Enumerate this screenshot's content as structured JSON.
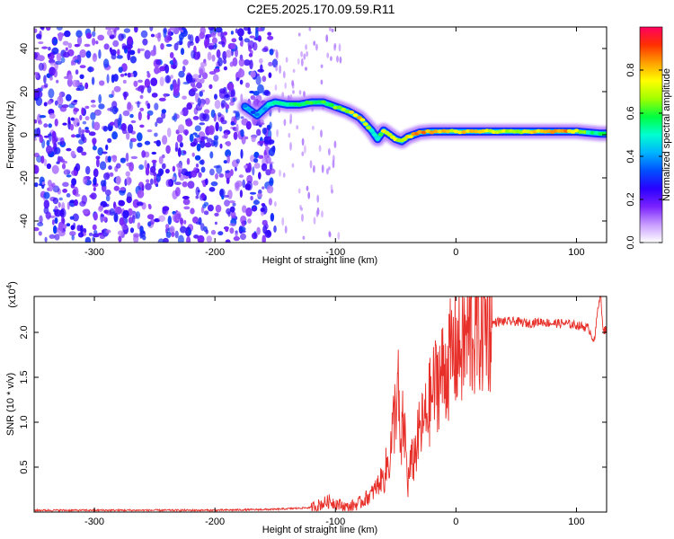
{
  "title": "C2E5.2025.170.09.59.R11",
  "chart_data": [
    {
      "type": "heatmap",
      "xlabel": "Height of straight line (km)",
      "ylabel": "Frequency (Hz)",
      "xlim": [
        -350,
        125
      ],
      "ylim": [
        -50,
        50
      ],
      "xticks": [
        -300,
        -200,
        -100,
        0,
        100
      ],
      "yticks": [
        -40,
        -20,
        0,
        20,
        40
      ],
      "colorbar": {
        "label": "Normalized spectral amplitude",
        "range": [
          0,
          1
        ],
        "ticks": [
          "0.0",
          "0.2",
          "0.4",
          "0.6",
          "0.8"
        ],
        "tick_values": [
          0.0,
          0.2,
          0.4,
          0.6,
          0.8
        ],
        "colors": [
          "#ffffff",
          "#c89bff",
          "#7a22ff",
          "#2a00ff",
          "#0050ff",
          "#00b4ff",
          "#00ffd0",
          "#00ff40",
          "#a0ff00",
          "#ffff00",
          "#ffa000",
          "#ff3000",
          "#ff0060"
        ]
      },
      "noise_region_x": [
        -350,
        -150
      ],
      "ridge": {
        "x": [
          -175,
          -165,
          -155,
          -150,
          -140,
          -130,
          -120,
          -110,
          -100,
          -90,
          -80,
          -75,
          -70,
          -65,
          -60,
          -55,
          -50,
          -45,
          -40,
          -35,
          -30,
          -20,
          -10,
          0,
          10,
          20,
          40,
          60,
          80,
          100,
          110,
          120,
          125
        ],
        "frequency": [
          13,
          9,
          14,
          15,
          14,
          14,
          15,
          15,
          13,
          11,
          8,
          5,
          2,
          -2,
          2,
          0,
          -2,
          -3,
          -1,
          0,
          1,
          1.5,
          1.5,
          1.5,
          1.5,
          1.5,
          1.5,
          1.5,
          1.5,
          1.5,
          1.0,
          0.5,
          0.5
        ],
        "amplitude": [
          0.35,
          0.35,
          0.45,
          0.5,
          0.55,
          0.6,
          0.62,
          0.6,
          0.62,
          0.7,
          0.78,
          0.72,
          0.55,
          0.45,
          0.72,
          0.75,
          0.7,
          0.72,
          0.75,
          0.78,
          0.85,
          0.8,
          0.78,
          0.7,
          0.8,
          0.75,
          0.7,
          0.72,
          0.85,
          0.8,
          0.5,
          0.55,
          0.5
        ]
      }
    },
    {
      "type": "line",
      "xlabel": "Height of straight line (km)",
      "ylabel": "SNR (10 * v/v)",
      "y_multiplier": "(x10",
      "y_multiplier_exp": "4",
      "y_multiplier_close": ")",
      "xlim": [
        -350,
        125
      ],
      "ylim": [
        0,
        2.4
      ],
      "xticks": [
        -300,
        -200,
        -100,
        0,
        100
      ],
      "yticks": [
        0.5,
        1.0,
        1.5,
        2.0
      ],
      "ytick_labels": [
        "0.5",
        "1.0",
        "1.5",
        "2.0"
      ],
      "color": "#e8302a",
      "series": [
        {
          "x": [
            -350,
            -200,
            -150,
            -120,
            -105,
            -100,
            -90,
            -80,
            -70,
            -60,
            -55,
            -50,
            -48,
            -46,
            -44,
            -42,
            -40,
            -38,
            -35,
            -30,
            -25,
            -20,
            -15,
            -10,
            -5,
            0,
            5,
            10,
            15,
            20,
            25,
            30,
            35,
            40,
            50,
            60,
            70,
            80,
            90,
            100,
            110,
            115,
            118,
            120,
            122,
            125
          ],
          "y": [
            0.02,
            0.02,
            0.03,
            0.05,
            0.12,
            0.1,
            0.05,
            0.1,
            0.2,
            0.4,
            0.6,
            1.2,
            1.4,
            0.55,
            1.0,
            0.8,
            0.3,
            0.5,
            0.6,
            0.9,
            1.05,
            1.3,
            1.5,
            1.55,
            1.7,
            1.8,
            1.85,
            1.95,
            2.0,
            2.05,
            2.1,
            2.1,
            2.12,
            2.12,
            2.12,
            2.1,
            2.12,
            2.1,
            2.1,
            2.08,
            2.05,
            1.9,
            2.3,
            2.45,
            2.0,
            2.05
          ]
        }
      ]
    }
  ]
}
